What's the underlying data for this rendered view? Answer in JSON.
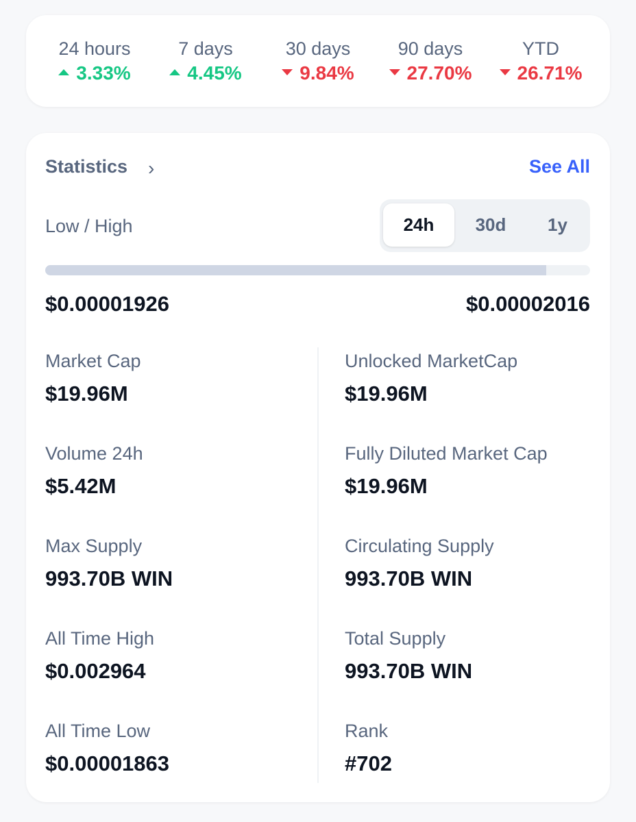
{
  "performance": [
    {
      "label": "24 hours",
      "value": "3.33%",
      "direction": "up"
    },
    {
      "label": "7 days",
      "value": "4.45%",
      "direction": "up"
    },
    {
      "label": "30 days",
      "value": "9.84%",
      "direction": "down"
    },
    {
      "label": "90 days",
      "value": "27.70%",
      "direction": "down"
    },
    {
      "label": "YTD",
      "value": "26.71%",
      "direction": "down"
    }
  ],
  "colors": {
    "up": "#16c784",
    "down": "#ea3943",
    "link": "#3861fb"
  },
  "statistics": {
    "title": "Statistics",
    "chevron_icon": "chevron-right-icon",
    "see_all": "See All",
    "low_high_label": "Low / High",
    "ranges": [
      "24h",
      "30d",
      "1y"
    ],
    "selected_range": "24h",
    "low": "$0.00001926",
    "high": "$0.00002016",
    "range_position_percent": 92,
    "left": [
      {
        "label": "Market Cap",
        "value": "$19.96M"
      },
      {
        "label": "Volume 24h",
        "value": "$5.42M"
      },
      {
        "label": "Max Supply",
        "value": "993.70B WIN"
      },
      {
        "label": "All Time High",
        "value": "$0.002964"
      },
      {
        "label": "All Time Low",
        "value": "$0.00001863"
      }
    ],
    "right": [
      {
        "label": "Unlocked MarketCap",
        "value": "$19.96M"
      },
      {
        "label": "Fully Diluted Market Cap",
        "value": "$19.96M"
      },
      {
        "label": "Circulating Supply",
        "value": "993.70B WIN"
      },
      {
        "label": "Total Supply",
        "value": "993.70B WIN"
      },
      {
        "label": "Rank",
        "value": "#702"
      }
    ]
  }
}
